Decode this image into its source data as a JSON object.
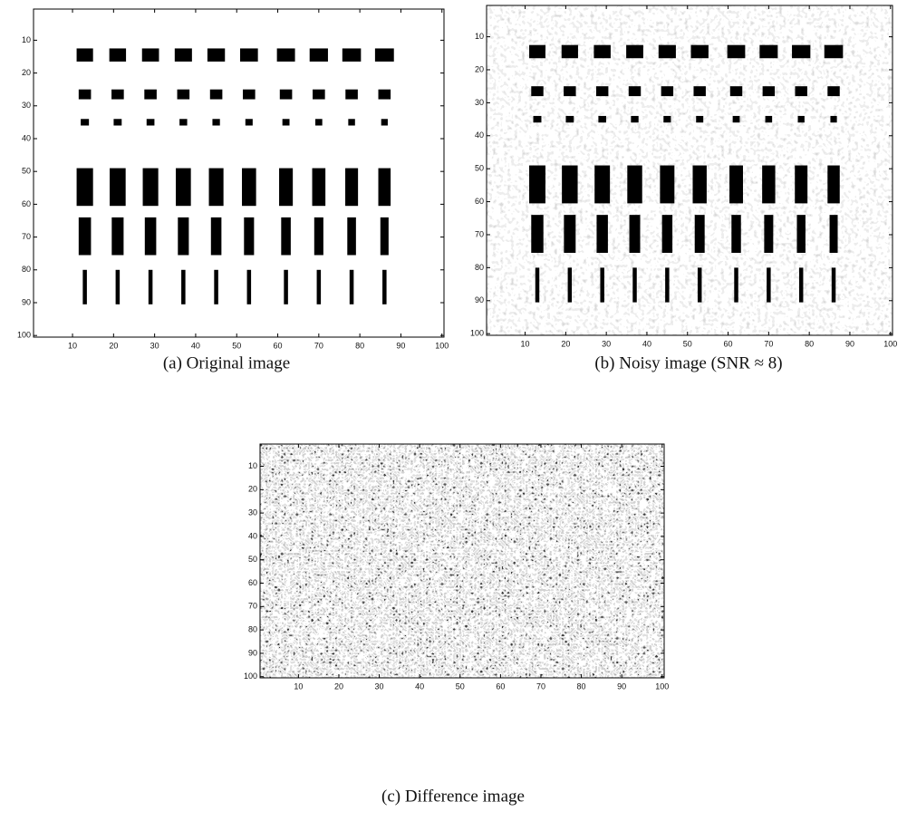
{
  "figures": [
    {
      "caption": "(a) Original image",
      "xlim": [
        0.5,
        100.5
      ],
      "ylim": [
        0.5,
        100.5
      ],
      "xticks": [
        10,
        20,
        30,
        40,
        50,
        60,
        70,
        80,
        90,
        100
      ],
      "yticks": [
        10,
        20,
        30,
        40,
        50,
        60,
        70,
        80,
        90,
        100
      ]
    },
    {
      "caption": "(b) Noisy image (SNR ≈ 8)",
      "xlim": [
        0.5,
        100.5
      ],
      "ylim": [
        0.5,
        100.5
      ],
      "xticks": [
        10,
        20,
        30,
        40,
        50,
        60,
        70,
        80,
        90,
        100
      ],
      "yticks": [
        10,
        20,
        30,
        40,
        50,
        60,
        70,
        80,
        90,
        100
      ]
    },
    {
      "caption": "(c) Difference image",
      "xlim": [
        0.5,
        100.5
      ],
      "ylim": [
        0.5,
        100.5
      ],
      "xticks": [
        10,
        20,
        30,
        40,
        50,
        60,
        70,
        80,
        90,
        100
      ],
      "yticks": [
        10,
        20,
        30,
        40,
        50,
        60,
        70,
        80,
        90,
        100
      ]
    }
  ]
}
